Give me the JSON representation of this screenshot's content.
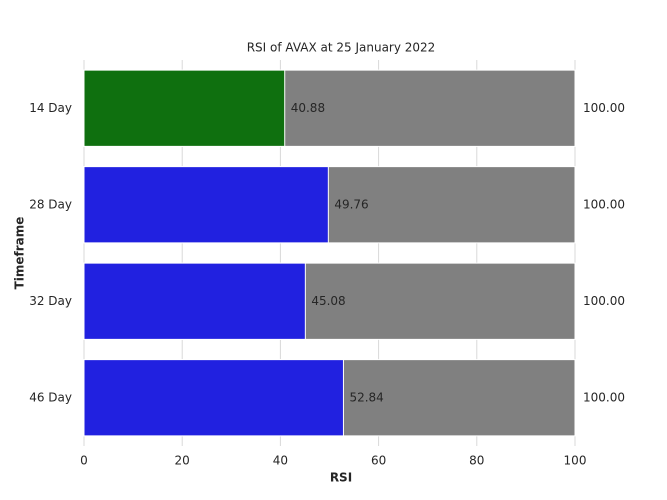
{
  "chart_data": {
    "type": "bar",
    "orientation": "horizontal",
    "title": "RSI of AVAX at 25 January 2022",
    "xlabel": "RSI",
    "ylabel": "Timeframe",
    "categories": [
      "14 Day",
      "28 Day",
      "32 Day",
      "46 Day"
    ],
    "series": [
      {
        "values": [
          100,
          100,
          100,
          100
        ],
        "value_labels": [
          "100.00",
          "100.00",
          "100.00",
          "100.00"
        ],
        "color": "#808080"
      },
      {
        "values": [
          40.88,
          49.76,
          45.08,
          52.84
        ],
        "colors": [
          "#0f700f",
          "#2121e0",
          "#2121e0",
          "#2121e0"
        ]
      }
    ],
    "xlim": [
      0,
      100
    ],
    "xticks": [
      0,
      20,
      40,
      60,
      80,
      100
    ],
    "grid": true
  }
}
